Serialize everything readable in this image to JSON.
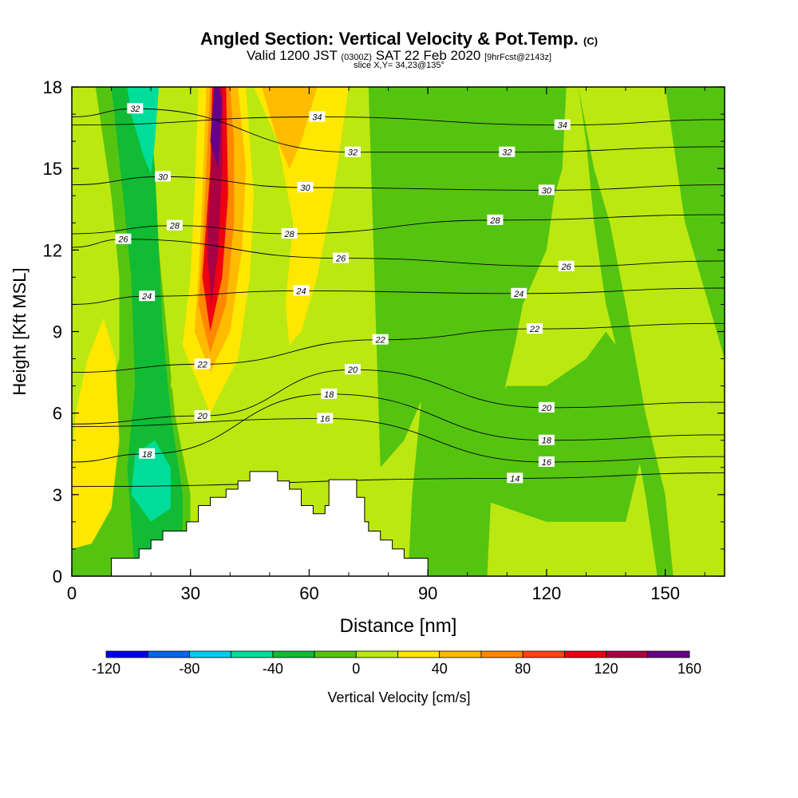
{
  "header": {
    "title_main": "Angled Section: Vertical Velocity & Pot.Temp.",
    "title_tag": "(C)",
    "valid_prefix": "Valid 1200 JST",
    "valid_utc": "(0300Z)",
    "valid_date": "SAT 22 Feb 2020",
    "valid_fcst": "[9hrFcst@2143z]",
    "slice": "slice X,Y= 34,23@135°"
  },
  "chart_data": {
    "type": "heatmap",
    "xlabel": "Distance [nm]",
    "ylabel": "Height [Kft MSL]",
    "xlim": [
      0,
      165
    ],
    "ylim": [
      0,
      18
    ],
    "x_ticks": [
      0,
      30,
      60,
      90,
      120,
      150
    ],
    "y_ticks": [
      0,
      3,
      6,
      9,
      12,
      15,
      18
    ],
    "colorbar": {
      "label": "Vertical Velocity [cm/s]",
      "min": -120,
      "max": 160,
      "step": 20,
      "tick_labels": [
        "-120",
        "-80",
        "-40",
        "0",
        "40",
        "80",
        "120",
        "160"
      ],
      "colors": [
        "#0000ee",
        "#0066ee",
        "#00ccee",
        "#00dd99",
        "#11bb33",
        "#55c411",
        "#bbe811",
        "#ffe800",
        "#ffbb00",
        "#ff8800",
        "#ff4411",
        "#ee0011",
        "#aa0044",
        "#660088"
      ]
    },
    "color_fields": [
      {
        "name": "updraft-core",
        "x": 37,
        "y": 13,
        "value": 150
      },
      {
        "name": "updraft-upper",
        "x": 45,
        "y": 17,
        "value": 60
      },
      {
        "name": "left-warm-band",
        "x": 8,
        "y": 3,
        "value": 30
      },
      {
        "name": "left-sinking-zone",
        "x": 20,
        "y": 4,
        "value": -50
      },
      {
        "name": "upper-left-sinking",
        "x": 20,
        "y": 16.5,
        "value": -40
      },
      {
        "name": "right-sinking-column",
        "x": 125,
        "y": 6,
        "value": -10
      },
      {
        "name": "far-right-weak",
        "x": 155,
        "y": 2,
        "value": 10
      }
    ],
    "isentropes": [
      {
        "label": "14",
        "x": 112,
        "y": 3.6
      },
      {
        "label": "16",
        "x": 64,
        "y": 5.8
      },
      {
        "label": "16",
        "x": 120,
        "y": 4.2
      },
      {
        "label": "18",
        "x": 19,
        "y": 4.5
      },
      {
        "label": "18",
        "x": 65,
        "y": 6.7
      },
      {
        "label": "18",
        "x": 120,
        "y": 5.0
      },
      {
        "label": "20",
        "x": 33,
        "y": 5.9
      },
      {
        "label": "20",
        "x": 71,
        "y": 7.6
      },
      {
        "label": "20",
        "x": 120,
        "y": 6.2
      },
      {
        "label": "22",
        "x": 33,
        "y": 7.8
      },
      {
        "label": "22",
        "x": 78,
        "y": 8.7
      },
      {
        "label": "22",
        "x": 117,
        "y": 9.1
      },
      {
        "label": "24",
        "x": 19,
        "y": 10.3
      },
      {
        "label": "24",
        "x": 58,
        "y": 10.5
      },
      {
        "label": "24",
        "x": 113,
        "y": 10.4
      },
      {
        "label": "26",
        "x": 13,
        "y": 12.4
      },
      {
        "label": "26",
        "x": 68,
        "y": 11.7
      },
      {
        "label": "26",
        "x": 125,
        "y": 11.4
      },
      {
        "label": "28",
        "x": 26,
        "y": 12.9
      },
      {
        "label": "28",
        "x": 55,
        "y": 12.6
      },
      {
        "label": "28",
        "x": 107,
        "y": 13.1
      },
      {
        "label": "30",
        "x": 23,
        "y": 14.7
      },
      {
        "label": "30",
        "x": 59,
        "y": 14.3
      },
      {
        "label": "30",
        "x": 120,
        "y": 14.2
      },
      {
        "label": "32",
        "x": 16,
        "y": 17.2
      },
      {
        "label": "32",
        "x": 71,
        "y": 15.6
      },
      {
        "label": "32",
        "x": 110,
        "y": 15.6
      },
      {
        "label": "34",
        "x": 62,
        "y": 16.9
      },
      {
        "label": "34",
        "x": 124,
        "y": 16.6
      }
    ],
    "terrain": [
      [
        0,
        0
      ],
      [
        10,
        0
      ],
      [
        10,
        0.66
      ],
      [
        17,
        0.66
      ],
      [
        17,
        1.0
      ],
      [
        20,
        1.0
      ],
      [
        20,
        1.33
      ],
      [
        23,
        1.33
      ],
      [
        23,
        1.66
      ],
      [
        29,
        1.66
      ],
      [
        29,
        2.0
      ],
      [
        32,
        2.0
      ],
      [
        32,
        2.6
      ],
      [
        35,
        2.6
      ],
      [
        35,
        2.9
      ],
      [
        39,
        2.9
      ],
      [
        39,
        3.2
      ],
      [
        42,
        3.2
      ],
      [
        42,
        3.5
      ],
      [
        45,
        3.5
      ],
      [
        45,
        3.85
      ],
      [
        52,
        3.85
      ],
      [
        52,
        3.5
      ],
      [
        55,
        3.5
      ],
      [
        55,
        3.2
      ],
      [
        58,
        3.2
      ],
      [
        58,
        2.6
      ],
      [
        61,
        2.6
      ],
      [
        61,
        2.3
      ],
      [
        64,
        2.3
      ],
      [
        64,
        2.6
      ],
      [
        65,
        2.6
      ],
      [
        65,
        3.55
      ],
      [
        72,
        3.55
      ],
      [
        72,
        2.9
      ],
      [
        74,
        2.9
      ],
      [
        74,
        2.0
      ],
      [
        75,
        2.0
      ],
      [
        75,
        1.66
      ],
      [
        78,
        1.66
      ],
      [
        78,
        1.33
      ],
      [
        81,
        1.33
      ],
      [
        81,
        1.0
      ],
      [
        84,
        1.0
      ],
      [
        84,
        0.66
      ],
      [
        90,
        0.66
      ],
      [
        90,
        0
      ],
      [
        0,
        0
      ]
    ]
  }
}
